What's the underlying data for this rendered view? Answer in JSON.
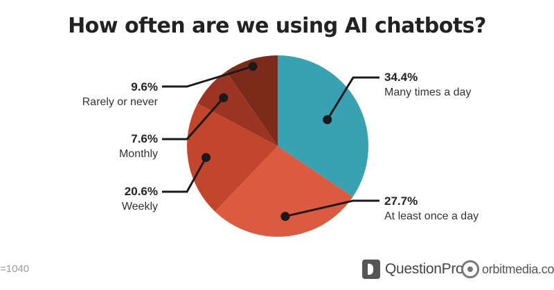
{
  "chart_data": {
    "type": "pie",
    "title": "How often are we using AI chatbots?",
    "slices": [
      {
        "pct_label": "34.4%",
        "category": "Many times a day",
        "value": 34.4,
        "color": "#37a3b2"
      },
      {
        "pct_label": "27.7%",
        "category": "At least once a day",
        "value": 27.7,
        "color": "#dc5a3f"
      },
      {
        "pct_label": "20.6%",
        "category": "Weekly",
        "value": 20.6,
        "color": "#c2462b"
      },
      {
        "pct_label": "7.6%",
        "category": "Monthly",
        "value": 7.6,
        "color": "#9b3422"
      },
      {
        "pct_label": "9.6%",
        "category": "Rarely or never",
        "value": 9.6,
        "color": "#7c2a1a"
      }
    ],
    "start_angle_deg": 0,
    "direction": "clockwise"
  },
  "footnote": "=1040",
  "brands": {
    "questionpro": "QuestionPro",
    "orbit": "orbitmedia.com"
  }
}
